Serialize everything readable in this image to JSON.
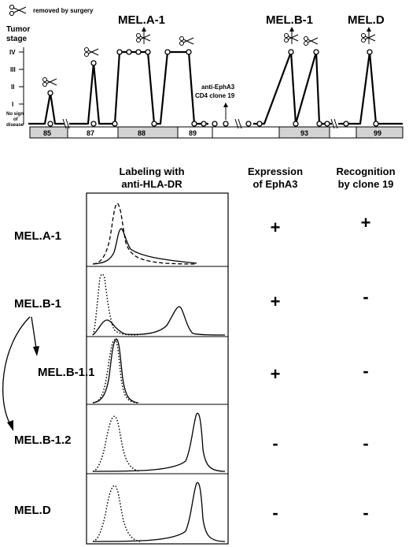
{
  "legend": {
    "label": "removed by surgery",
    "icon": "scissors-icon"
  },
  "timeline": {
    "y_title": [
      "Tumor",
      "stage"
    ],
    "y_ticks": [
      "IV",
      "III",
      "II",
      "I"
    ],
    "no_sign": [
      "No sign",
      "of",
      "disease"
    ],
    "years": [
      "85",
      "87",
      "88",
      "89",
      "93",
      "99"
    ],
    "annotation": [
      "anti-EphA3",
      "CD4 clone 19"
    ],
    "events": [
      {
        "label": ""
      },
      {
        "label": ""
      },
      {
        "label": "MEL.A-1"
      },
      {
        "label": ""
      },
      {
        "label": "MEL.B-1"
      },
      {
        "label": ""
      },
      {
        "label": "MEL.D"
      }
    ]
  },
  "table": {
    "col_labeling": [
      "Labeling with",
      "anti-HLA-DR"
    ],
    "col_expression": [
      "Expression",
      "of EphA3"
    ],
    "col_recognition": [
      "Recognition",
      "by clone 19"
    ],
    "rows": [
      {
        "name": "MEL.A-1",
        "expression": "+",
        "recognition": "+"
      },
      {
        "name": "MEL.B-1",
        "expression": "+",
        "recognition": "-"
      },
      {
        "name": "MEL.B-1.1",
        "expression": "+",
        "recognition": "-"
      },
      {
        "name": "MEL.B-1.2",
        "expression": "-",
        "recognition": "-"
      },
      {
        "name": "MEL.D",
        "expression": "-",
        "recognition": "-"
      }
    ]
  }
}
